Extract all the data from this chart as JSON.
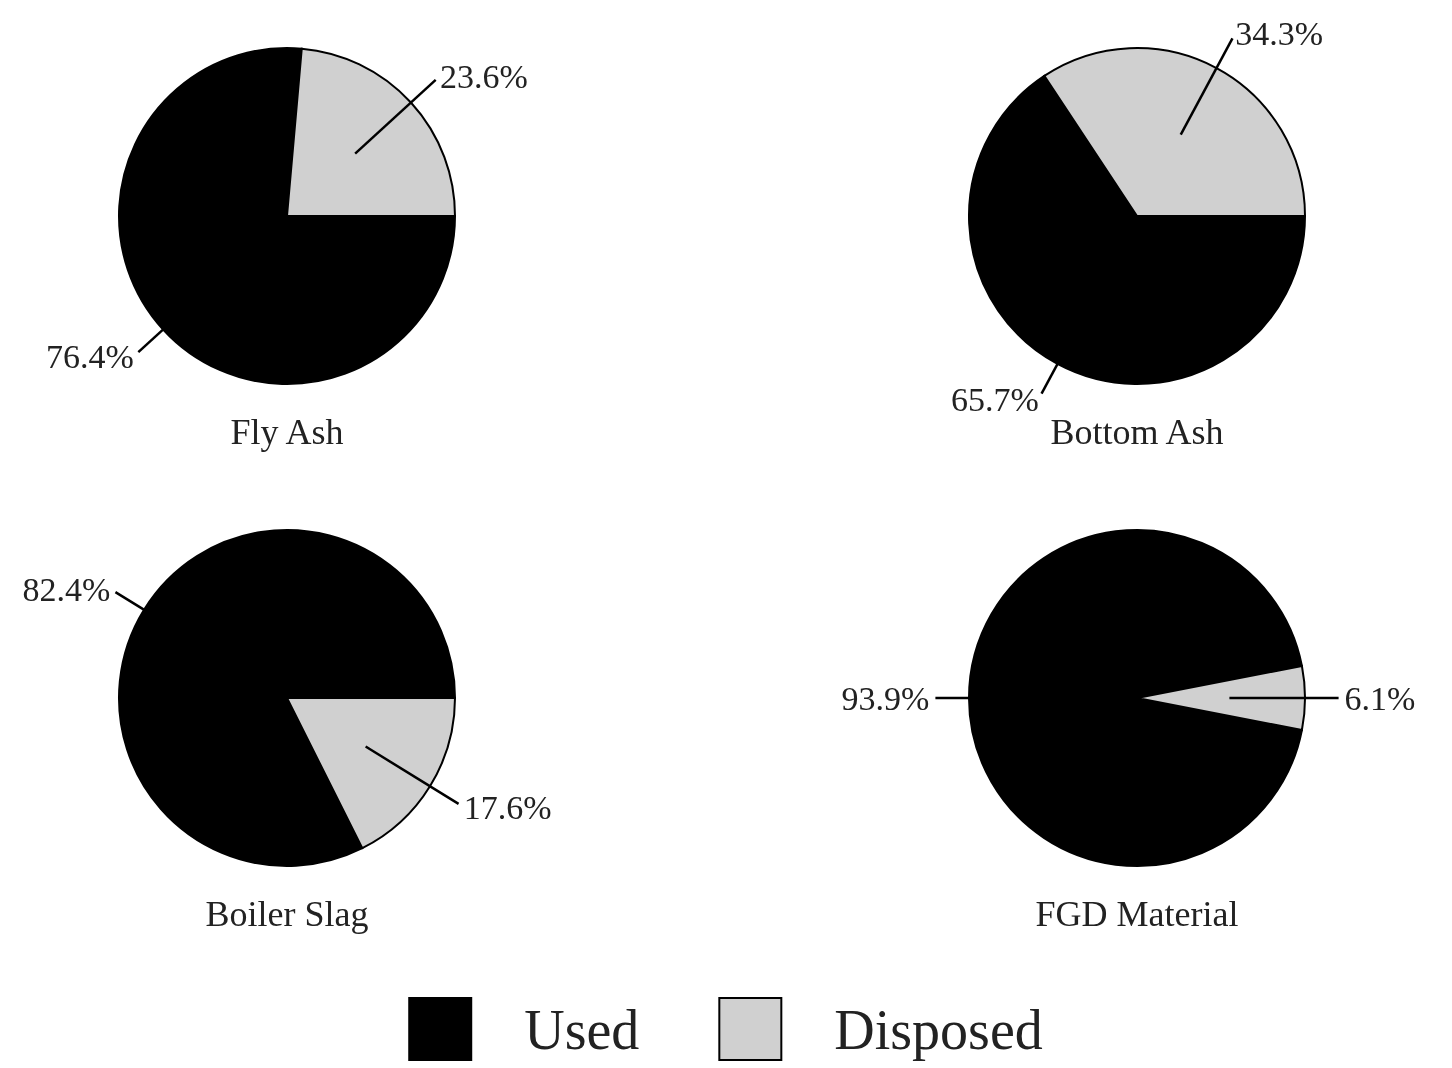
{
  "chart_data": [
    {
      "type": "pie",
      "title": "Fly Ash",
      "categories": [
        "Used",
        "Disposed"
      ],
      "values": [
        76.4,
        23.6
      ],
      "colors": [
        "#000000",
        "#d0d0d0"
      ],
      "value_labels": [
        "76.4%",
        "23.6%"
      ],
      "legend": "bottom"
    },
    {
      "type": "pie",
      "title": "Bottom Ash",
      "categories": [
        null,
        null
      ],
      "values": [
        65.7,
        34.3
      ],
      "colors": [
        "#000000",
        "#d0d0d0"
      ],
      "value_labels": [
        "65.7%",
        "34.3%"
      ]
    },
    {
      "type": "pie",
      "title": "Boiler Slag",
      "categories": [
        null,
        null
      ],
      "values": [
        82.4,
        17.6
      ],
      "colors": [
        "#000000",
        "#d0d0d0"
      ],
      "value_labels": [
        "82.4%",
        "17.6%"
      ]
    },
    {
      "type": "pie",
      "title": "FGD Material",
      "categories": [
        null,
        null
      ],
      "values": [
        93.9,
        6.1
      ],
      "colors": [
        "#000000",
        "#d0d0d0"
      ],
      "value_labels": [
        "93.9%",
        "6.1%"
      ]
    }
  ]
}
